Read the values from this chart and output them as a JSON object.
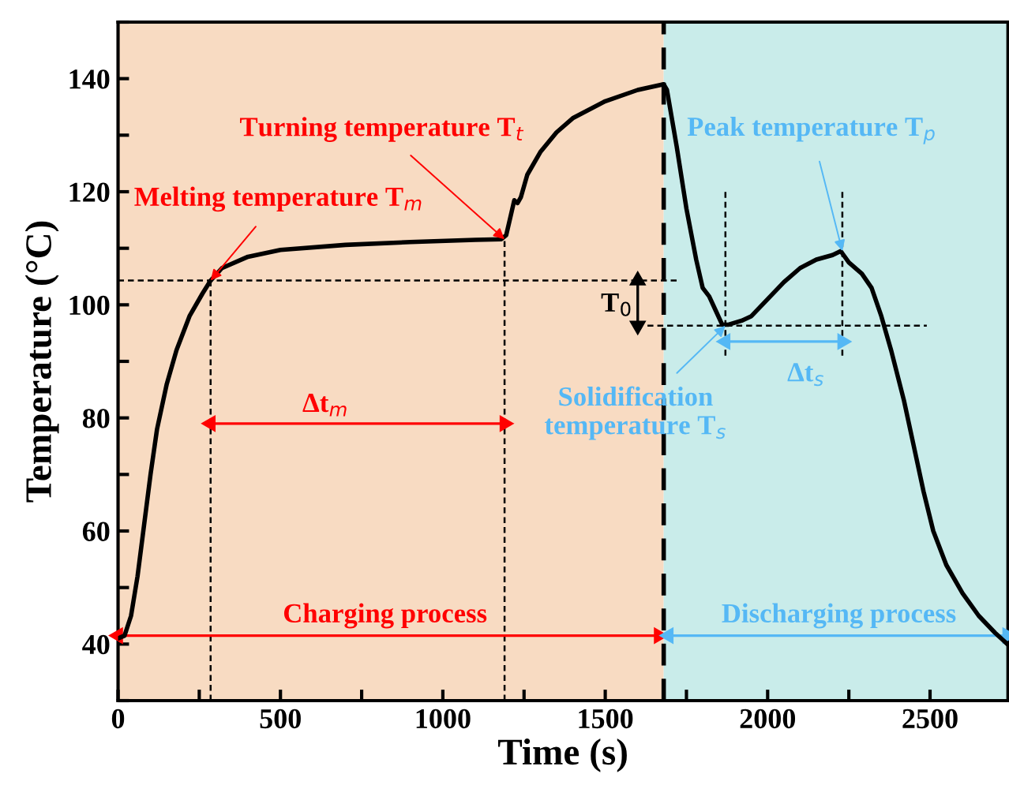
{
  "chart_data": {
    "type": "line",
    "xlabel": "Time (s)",
    "ylabel": "Temperature (°C)",
    "xlim": [
      0,
      2740
    ],
    "ylim": [
      30,
      150
    ],
    "xticks": [
      0,
      {
        "value": 250,
        "label": null
      },
      500,
      {
        "value": 750,
        "label": null
      },
      1000,
      {
        "value": 1250,
        "label": null
      },
      1500,
      {
        "value": 1750,
        "label": null
      },
      2000,
      {
        "value": 2250,
        "label": null
      },
      2500
    ],
    "yticks": [
      {
        "value": 30,
        "label": null
      },
      40,
      {
        "value": 50,
        "label": null
      },
      60,
      {
        "value": 70,
        "label": null
      },
      80,
      {
        "value": 90,
        "label": null
      },
      100,
      {
        "value": 110,
        "label": null
      },
      120,
      {
        "value": 130,
        "label": null
      },
      140,
      {
        "value": 150,
        "label": null
      }
    ],
    "grid": false,
    "bands": [
      {
        "axis": "x",
        "from": 0,
        "to": 1680,
        "color": "#f8dbc2"
      },
      {
        "axis": "x",
        "from": 1680,
        "to": 2740,
        "color": "#c9ecea"
      }
    ],
    "ref_lines": [
      {
        "axis": "x",
        "value": 1680,
        "color": "#000000",
        "line_style": "dashed"
      }
    ],
    "series": [
      {
        "color": "#000000",
        "line_style": "solid",
        "x": [
          0,
          20,
          40,
          60,
          80,
          100,
          120,
          150,
          180,
          220,
          260,
          285,
          320,
          400,
          500,
          700,
          900,
          1100,
          1180,
          1195,
          1210,
          1220,
          1230,
          1240,
          1260,
          1300,
          1350,
          1400,
          1500,
          1600,
          1680,
          1690,
          1720,
          1750,
          1780,
          1800,
          1820,
          1840,
          1860,
          1880,
          1920,
          1950,
          2000,
          2050,
          2100,
          2150,
          2200,
          2225,
          2250,
          2290,
          2320,
          2350,
          2380,
          2420,
          2450,
          2480,
          2510,
          2550,
          2600,
          2650,
          2700,
          2738
        ],
        "values": [
          41,
          41.5,
          45,
          52,
          61,
          70,
          78,
          86,
          92,
          98,
          102,
          104.3,
          106.5,
          108.5,
          109.7,
          110.6,
          111.1,
          111.5,
          111.6,
          112.3,
          116,
          118.5,
          118,
          119,
          123,
          127,
          130.5,
          133,
          136,
          138,
          139,
          138,
          128,
          117,
          108,
          103,
          101.5,
          99,
          96.5,
          96.5,
          97.2,
          98,
          101,
          104,
          106.5,
          108,
          108.8,
          109.5,
          107.5,
          105.5,
          103,
          98,
          92,
          83,
          75,
          67,
          60,
          54,
          49,
          45,
          42,
          40
        ]
      },
      {
        "color": "#000000",
        "line_style": "dotted",
        "x": [
          0,
          1720
        ],
        "values": [
          104.3,
          104.3
        ]
      },
      {
        "color": "#000000",
        "line_style": "dotted",
        "x": [
          1630,
          2490
        ],
        "values": [
          96.3,
          96.3
        ]
      },
      {
        "color": "#000000",
        "line_style": "dotted",
        "x": [
          285,
          285
        ],
        "values": [
          30,
          104.3
        ]
      },
      {
        "color": "#000000",
        "line_style": "dotted",
        "x": [
          1190,
          1190
        ],
        "values": [
          30,
          111.6
        ]
      },
      {
        "color": "#000000",
        "line_style": "dotted",
        "x": [
          1870,
          1870
        ],
        "values": [
          91,
          120
        ]
      },
      {
        "color": "#000000",
        "line_style": "dotted",
        "x": [
          2230,
          2230
        ],
        "values": [
          91,
          120
        ]
      },
      {
        "color": "#ff0000",
        "line_style": "solid",
        "marker": "triangle",
        "x": [
          285,
          1190
        ],
        "values": [
          79,
          79
        ]
      },
      {
        "color": "#55b8f5",
        "line_style": "solid",
        "marker": "triangle",
        "x": [
          1870,
          2230
        ],
        "values": [
          93.5,
          93.5
        ]
      },
      {
        "color": "#ff0000",
        "line_style": "solid",
        "marker": "triangle",
        "x": [
          0,
          1665
        ],
        "values": [
          41.5,
          41.5
        ]
      },
      {
        "color": "#55b8f5",
        "line_style": "solid",
        "marker": "triangle",
        "x": [
          1695,
          2738
        ],
        "values": [
          41.5,
          41.5
        ]
      },
      {
        "color": "#000000",
        "line_style": "solid",
        "marker": "triangle",
        "x": [
          1600,
          1600
        ],
        "values": [
          104.3,
          96.3
        ]
      }
    ],
    "annotations": [
      {
        "text": "Melting temperature T$_{m}$",
        "x": 285,
        "y": 104.3
      },
      {
        "text": "Turning temperature T$_{t}$",
        "x": 1190,
        "y": 111.6
      },
      {
        "text": "Peak temperature T$_{p}$",
        "x": 2230,
        "y": 109.5
      },
      {
        "text": "Solidification\ntemperature T$_{s}$",
        "x": 1870,
        "y": 96.3
      },
      "T$_{0}$",
      "Δt$_{m}$",
      "Δt$_{s}$",
      "Charging process",
      "Discharging process"
    ]
  }
}
